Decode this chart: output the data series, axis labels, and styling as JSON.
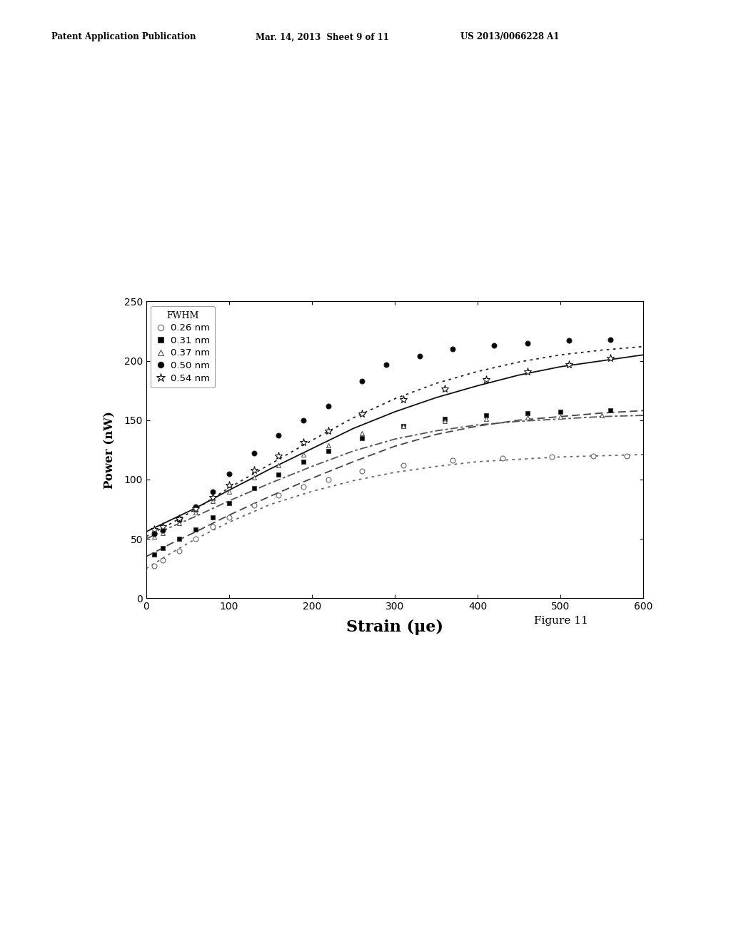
{
  "header_left": "Patent Application Publication",
  "header_mid": "Mar. 14, 2013  Sheet 9 of 11",
  "header_right": "US 2013/0066228 A1",
  "figure_label": "Figure 11",
  "xlabel": "Strain (μe)",
  "ylabel": "Power (nW)",
  "xlim": [
    0,
    600
  ],
  "ylim": [
    0,
    250
  ],
  "xticks": [
    0,
    100,
    200,
    300,
    400,
    500,
    600
  ],
  "yticks": [
    0,
    50,
    100,
    150,
    200,
    250
  ],
  "legend_title": "FWHM",
  "series": [
    {
      "label": "0.26 nm",
      "marker": "o",
      "marker_fill": "white",
      "linestyle": "dotted",
      "color": "#666666",
      "scatter_x": [
        10,
        20,
        40,
        60,
        80,
        100,
        130,
        160,
        190,
        220,
        260,
        310,
        370,
        430,
        490,
        540,
        580
      ],
      "scatter_y": [
        27,
        32,
        40,
        50,
        60,
        68,
        78,
        87,
        94,
        100,
        107,
        112,
        116,
        118,
        119,
        120,
        120
      ],
      "fit_x": [
        0,
        30,
        60,
        100,
        150,
        200,
        250,
        300,
        350,
        400,
        450,
        500,
        550,
        600
      ],
      "fit_y": [
        25,
        38,
        50,
        64,
        79,
        90,
        99,
        106,
        111,
        115,
        117,
        119,
        120,
        121
      ]
    },
    {
      "label": "0.31 nm",
      "marker": "s",
      "marker_fill": "black",
      "linestyle": "dashed",
      "color": "#444444",
      "scatter_x": [
        10,
        20,
        40,
        60,
        80,
        100,
        130,
        160,
        190,
        220,
        260,
        310,
        360,
        410,
        460,
        500,
        560
      ],
      "scatter_y": [
        37,
        42,
        50,
        58,
        68,
        80,
        93,
        104,
        115,
        124,
        135,
        145,
        151,
        154,
        156,
        157,
        158
      ],
      "fit_x": [
        0,
        30,
        60,
        100,
        150,
        200,
        250,
        300,
        350,
        400,
        450,
        500,
        550,
        600
      ],
      "fit_y": [
        35,
        46,
        56,
        70,
        86,
        101,
        115,
        128,
        138,
        145,
        150,
        153,
        156,
        158
      ]
    },
    {
      "label": "0.37 nm",
      "marker": "^",
      "marker_fill": "white",
      "linestyle": "dashdot",
      "color": "#555555",
      "scatter_x": [
        10,
        20,
        40,
        60,
        80,
        100,
        130,
        160,
        190,
        220,
        260,
        310,
        360,
        410,
        460,
        500,
        550
      ],
      "scatter_y": [
        52,
        55,
        63,
        72,
        82,
        90,
        102,
        112,
        121,
        129,
        139,
        145,
        149,
        151,
        152,
        153,
        154
      ],
      "fit_x": [
        0,
        30,
        60,
        100,
        150,
        200,
        250,
        300,
        350,
        400,
        450,
        500,
        550,
        600
      ],
      "fit_y": [
        50,
        60,
        69,
        82,
        97,
        111,
        124,
        134,
        141,
        146,
        149,
        151,
        153,
        154
      ]
    },
    {
      "label": "0.50 nm",
      "marker": "o",
      "marker_fill": "black",
      "linestyle": "dotted",
      "color": "#222222",
      "scatter_x": [
        10,
        20,
        40,
        60,
        80,
        100,
        130,
        160,
        190,
        220,
        260,
        290,
        330,
        370,
        420,
        460,
        510,
        560
      ],
      "scatter_y": [
        54,
        57,
        66,
        77,
        90,
        105,
        122,
        137,
        150,
        162,
        183,
        197,
        204,
        210,
        213,
        215,
        217,
        218
      ],
      "fit_x": [
        0,
        30,
        60,
        100,
        150,
        200,
        250,
        300,
        350,
        400,
        450,
        500,
        550,
        600
      ],
      "fit_y": [
        52,
        63,
        75,
        93,
        113,
        133,
        152,
        168,
        181,
        191,
        199,
        205,
        209,
        212
      ]
    },
    {
      "label": "0.54 nm",
      "marker": "*",
      "marker_fill": "white",
      "linestyle": "solid",
      "color": "#111111",
      "scatter_x": [
        10,
        20,
        40,
        60,
        80,
        100,
        130,
        160,
        190,
        220,
        260,
        310,
        360,
        410,
        460,
        510,
        560
      ],
      "scatter_y": [
        58,
        60,
        67,
        75,
        85,
        95,
        108,
        120,
        131,
        141,
        155,
        167,
        176,
        184,
        191,
        197,
        202
      ],
      "fit_x": [
        0,
        30,
        60,
        100,
        150,
        200,
        250,
        300,
        350,
        400,
        450,
        500,
        550,
        600
      ],
      "fit_y": [
        56,
        66,
        76,
        91,
        109,
        126,
        143,
        157,
        169,
        179,
        188,
        195,
        200,
        205
      ]
    }
  ],
  "bg_color": "#ffffff",
  "text_color": "#000000"
}
